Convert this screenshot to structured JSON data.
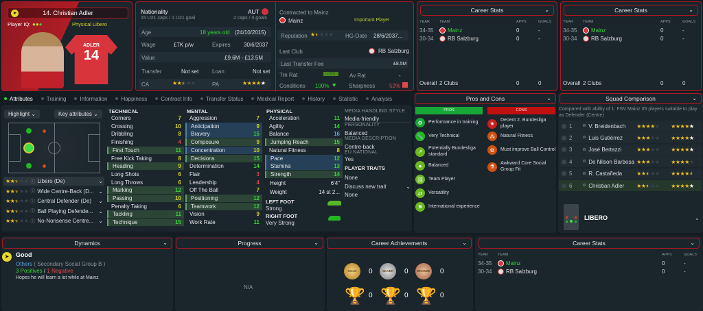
{
  "player": {
    "name": "14. Christian Adler",
    "iq_label": "Player IQ:",
    "role": "Physical Libero",
    "shirt_name": "ADLER",
    "shirt_number": "14"
  },
  "info": {
    "nationality_label": "Nationality",
    "nationality": "AUT",
    "u21": "15 U21 caps / 1 U21 goal",
    "caps": "2 caps / 0 goals",
    "age_label": "Age",
    "age": "18 years old",
    "dob": "(24/10/2015)",
    "wage_label": "Wage",
    "wage": "£7K p/w",
    "expires_label": "Expires",
    "expires": "30/6/2037",
    "value_label": "Value",
    "value": "£9.6M - £13.5M",
    "transfer_label": "Transfer",
    "transfer": "Not set",
    "loan_label": "Loan",
    "loan": "Not set",
    "ca_label": "CA",
    "ca_stars": 2.5,
    "pa_label": "PA",
    "pa_stars": 5,
    "contracted_label": "Contracted to Mainz",
    "club": "Mainz",
    "status": "Important Player",
    "reputation_label": "Reputation",
    "reputation_stars": 1.5,
    "hg_label": "HG-Date",
    "hg": "28/6/2037...",
    "last_club_label": "Last Club",
    "last_club": "RB Salzburg",
    "fee_label": "Last Transfer Fee",
    "fee": "£8.5M",
    "trn_label": "Trn Rat",
    "trn": "7.00",
    "av_label": "Av Rat",
    "av": "-",
    "cond_label": "Conditions",
    "cond": "100%",
    "sharp_label": "Sharpness",
    "sharp": "52%"
  },
  "career_stats": {
    "title": "Career Stats",
    "headers": [
      "YEAR",
      "TEAM",
      "APPS",
      "GOALS"
    ],
    "rows": [
      {
        "year": "34-35",
        "team": "Mainz",
        "apps": "0",
        "goals": "-",
        "current": true
      },
      {
        "year": "30-34",
        "team": "RB Salzburg",
        "apps": "0",
        "goals": "-",
        "current": false
      }
    ],
    "overall": "Overall",
    "clubs": "2 Clubs",
    "total_apps": "0",
    "total_goals": "0"
  },
  "tabs": [
    "Attributes",
    "Training",
    "Information",
    "Happiness",
    "Contract Info",
    "Transfer Status",
    "Medical Report",
    "History",
    "Statistic",
    "Analysis"
  ],
  "highlight": "Highlight",
  "key_attributes": "Key attributes",
  "roles": [
    {
      "name": "Libero (De)",
      "stars": 2.5
    },
    {
      "name": "Wide Centre-Back (D...",
      "stars": 2.5
    },
    {
      "name": "Central Defender (De)",
      "stars": 2.5
    },
    {
      "name": "Ball Playing Defende...",
      "stars": 2.5
    },
    {
      "name": "No-Nonsense Centre...",
      "stars": 2.5
    }
  ],
  "technical": {
    "title": "TECHNICAL",
    "items": [
      [
        "Corners",
        7,
        ""
      ],
      [
        "Crossing",
        10,
        ""
      ],
      [
        "Dribbling",
        8,
        ""
      ],
      [
        "Finishing",
        4,
        ""
      ],
      [
        "First Touch",
        11,
        "g"
      ],
      [
        "Free Kick Taking",
        8,
        ""
      ],
      [
        "Heading",
        9,
        "g"
      ],
      [
        "Long Shots",
        6,
        ""
      ],
      [
        "Long Throws",
        6,
        ""
      ],
      [
        "Marking",
        12,
        "g"
      ],
      [
        "Passing",
        10,
        "g"
      ],
      [
        "Penalty Taking",
        6,
        ""
      ],
      [
        "Tackling",
        11,
        "g"
      ],
      [
        "Technique",
        15,
        "g"
      ]
    ]
  },
  "mental": {
    "title": "MENTAL",
    "items": [
      [
        "Aggression",
        7,
        ""
      ],
      [
        "Anticipation",
        9,
        "b"
      ],
      [
        "Bravery",
        15,
        "b"
      ],
      [
        "Composure",
        9,
        "g"
      ],
      [
        "Concentration",
        10,
        "b"
      ],
      [
        "Decisions",
        15,
        "g"
      ],
      [
        "Determination",
        14,
        ""
      ],
      [
        "Flair",
        3,
        ""
      ],
      [
        "Leadership",
        4,
        ""
      ],
      [
        "Off The Ball",
        7,
        ""
      ],
      [
        "Positioning",
        12,
        "g"
      ],
      [
        "Teamwork",
        12,
        "g"
      ],
      [
        "Vision",
        9,
        ""
      ],
      [
        "Work Rate",
        11,
        ""
      ]
    ]
  },
  "physical": {
    "title": "PHYSICAL",
    "items": [
      [
        "Acceleration",
        11,
        ""
      ],
      [
        "Agility",
        14,
        ""
      ],
      [
        "Balance",
        16,
        ""
      ],
      [
        "Jumping Reach",
        15,
        "g"
      ],
      [
        "Natural Fitness",
        8,
        ""
      ],
      [
        "Pace",
        12,
        "b"
      ],
      [
        "Stamina",
        13,
        "b"
      ],
      [
        "Strength",
        14,
        "g"
      ]
    ],
    "height_label": "Height",
    "height": "6'4\"",
    "weight_label": "Weight",
    "weight": "14 st 2...",
    "left_foot_label": "LEFT FOOT",
    "left_foot": "Strong",
    "right_foot_label": "RIGHT FOOT",
    "right_foot": "Very Strong"
  },
  "media": {
    "mhs_label": "MEDIA HANDLING STYLE",
    "mhs": "Media-friendly",
    "pers_label": "PERSONALITY",
    "pers": "Balanced",
    "desc_label": "MEDIA DESCRIPTION",
    "desc": "Centre-back",
    "eu_label": "EU NATIONAL",
    "eu": "Yes",
    "traits_label": "PLAYER TRAITS",
    "traits": "None",
    "discuss": "Discuss new trait",
    "traits2": "None"
  },
  "pros_cons": {
    "title": "Pros and Cons",
    "pros_label": "PROS",
    "cons_label": "CONS",
    "pros": [
      "Performance in training",
      "Very Technical",
      "Potentially Bundesliga standard",
      "Balanced",
      "Team Player",
      "Versatility",
      "International experience"
    ],
    "cons": [
      "Decent 2. Bundesliga player",
      "Natural Fitness",
      "Must improve Ball Control",
      "Awkward Core Social Group Fit"
    ]
  },
  "squad": {
    "title": "Squad Comparison",
    "desc": "Compared with ability of 1. FSV Mainz 05 players suitable to play as Defender (Centre)",
    "rows": [
      {
        "rank": "1",
        "name": "V. Breidenbach",
        "ca": 4,
        "pa": 5
      },
      {
        "rank": "2",
        "name": "Luis Gutiérrez",
        "ca": 3,
        "pa": 5
      },
      {
        "rank": "3",
        "name": "José Bertazzi",
        "ca": 3,
        "pa": 5
      },
      {
        "rank": "4",
        "name": "De Nilson Barbosa",
        "ca": 3,
        "pa": 4
      },
      {
        "rank": "5",
        "name": "R. Castañeda",
        "ca": 2.5,
        "pa": 4.5
      },
      {
        "rank": "6",
        "name": "Christian Adler",
        "ca": 2.5,
        "pa": 5
      }
    ],
    "role": "LIBERO"
  },
  "dynamics": {
    "title": "Dynamics",
    "status": "Good",
    "group": "Others",
    "group_detail": "( Secondary Social Group B )",
    "positives": "3 Positives",
    "sep": "/",
    "negatives": "1 Negative",
    "note": "Hopes he will learn a lot while at Mainz"
  },
  "progress": {
    "title": "Progress",
    "value": "N/A"
  },
  "achievements": {
    "title": "Career Achievements",
    "medals": [
      {
        "label": "GOLD",
        "count": "0"
      },
      {
        "label": "SILVER",
        "count": "0"
      },
      {
        "label": "BRONZE",
        "count": "0"
      }
    ],
    "trophies": [
      "0",
      "0",
      "0"
    ]
  },
  "colors": {
    "accent": "#b01822",
    "positive": "#35d335",
    "negative": "#e04848"
  }
}
